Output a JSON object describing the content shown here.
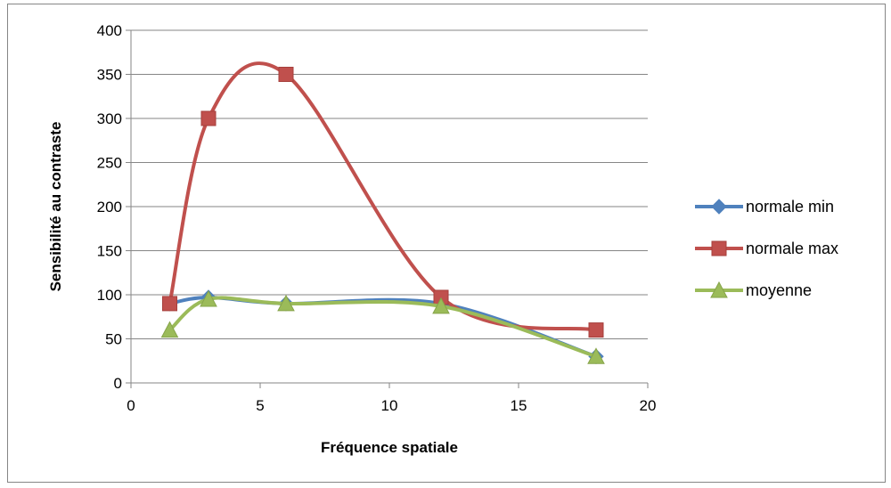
{
  "chart_data": {
    "type": "scatter",
    "smooth": true,
    "title": "",
    "xlabel": "Fréquence spatiale",
    "ylabel": "Sensibilité au contraste",
    "xlim": [
      0,
      20
    ],
    "ylim": [
      0,
      400
    ],
    "xticks": [
      0,
      5,
      10,
      15,
      20
    ],
    "yticks": [
      0,
      50,
      100,
      150,
      200,
      250,
      300,
      350,
      400
    ],
    "grid": "horizontal",
    "legend_position": "right",
    "series": [
      {
        "name": "normale min",
        "color": "#4F81BD",
        "marker": "diamond",
        "x": [
          1.5,
          3,
          6,
          12,
          18
        ],
        "y": [
          90,
          97,
          90,
          90,
          30
        ]
      },
      {
        "name": "normale max",
        "color": "#C0504D",
        "marker": "square",
        "x": [
          1.5,
          3,
          6,
          12,
          18
        ],
        "y": [
          90,
          300,
          350,
          97,
          60
        ]
      },
      {
        "name": "moyenne",
        "color": "#9BBB59",
        "marker": "triangle",
        "x": [
          1.5,
          3,
          6,
          12,
          18
        ],
        "y": [
          60,
          95,
          90,
          87,
          30
        ]
      }
    ]
  }
}
